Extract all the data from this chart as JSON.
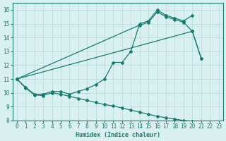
{
  "line1_x": [
    0,
    1,
    2,
    3,
    4,
    5,
    6,
    7,
    8,
    9,
    10,
    11,
    12,
    13,
    14,
    15,
    16,
    17,
    18,
    19,
    20
  ],
  "line1_y": [
    11.0,
    10.4,
    9.9,
    9.9,
    10.1,
    10.1,
    9.9,
    10.1,
    10.3,
    10.6,
    11.0,
    12.2,
    12.2,
    13.0,
    15.0,
    15.2,
    16.0,
    15.6,
    15.4,
    15.2,
    15.6
  ],
  "line2_x": [
    0,
    14,
    15,
    16,
    17,
    18,
    19,
    20,
    21
  ],
  "line2_y": [
    11.0,
    14.9,
    15.1,
    15.85,
    15.5,
    15.3,
    15.1,
    14.45,
    12.5
  ],
  "line3_x": [
    0,
    20,
    21
  ],
  "line3_y": [
    11.0,
    14.45,
    12.5
  ],
  "line4_x": [
    0,
    1,
    2,
    3,
    4,
    5,
    6,
    7,
    8,
    9,
    10,
    11,
    12,
    13,
    14,
    15,
    16,
    17,
    18,
    19,
    20,
    21,
    22,
    23
  ],
  "line4_y": [
    11.0,
    10.35,
    9.85,
    9.8,
    10.0,
    9.9,
    9.75,
    9.6,
    9.45,
    9.3,
    9.15,
    9.05,
    8.9,
    8.75,
    8.6,
    8.45,
    8.3,
    8.2,
    8.1,
    8.0,
    7.95,
    7.9,
    7.85,
    7.8
  ],
  "color": "#1a7a6e",
  "bg_color": "#d8f0f0",
  "grid_color": "#b8d8d8",
  "xlim": [
    -0.5,
    23.5
  ],
  "ylim": [
    8,
    16.5
  ],
  "yticks": [
    8,
    9,
    10,
    11,
    12,
    13,
    14,
    15,
    16
  ],
  "xticks": [
    0,
    1,
    2,
    3,
    4,
    5,
    6,
    7,
    8,
    9,
    10,
    11,
    12,
    13,
    14,
    15,
    16,
    17,
    18,
    19,
    20,
    21,
    22,
    23
  ],
  "xlabel": "Humidex (Indice chaleur)",
  "marker": "D",
  "markersize": 2.0,
  "linewidth": 0.9
}
